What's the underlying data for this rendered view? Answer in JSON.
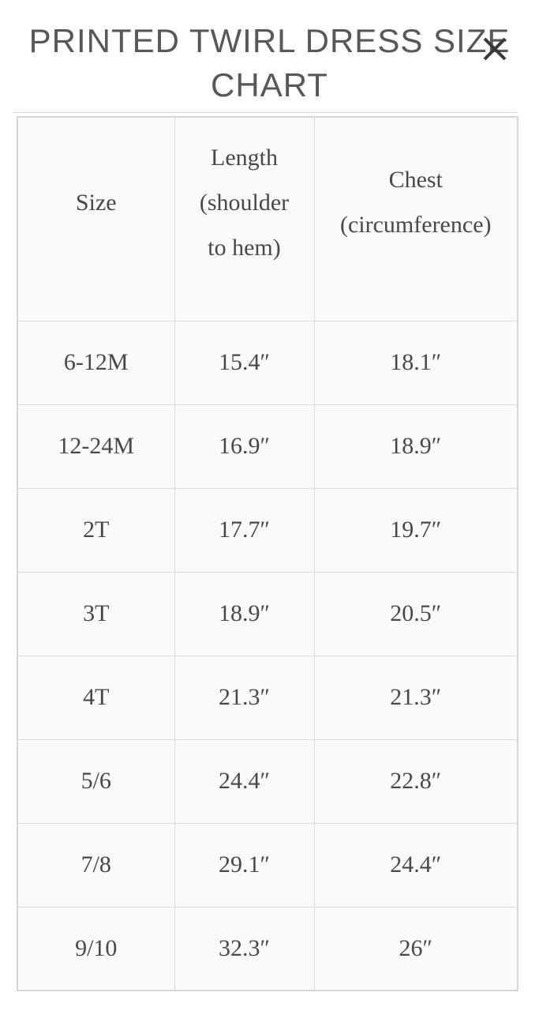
{
  "modal": {
    "title_line1": "PRINTED TWIRL DRESS SIZE",
    "title_line2": "CHART"
  },
  "icons": {
    "close_icon": "✕"
  },
  "table": {
    "columns": [
      "Size",
      "Length (shoulder to hem)",
      "Chest (circumference)"
    ],
    "rows": [
      [
        "6-12M",
        "15.4″",
        "18.1″"
      ],
      [
        "12-24M",
        "16.9″",
        "18.9″"
      ],
      [
        "2T",
        "17.7″",
        "19.7″"
      ],
      [
        "3T",
        "18.9″",
        "20.5″"
      ],
      [
        "4T",
        "21.3″",
        "21.3″"
      ],
      [
        "5/6",
        "24.4″",
        "22.8″"
      ],
      [
        "7/8",
        "29.1″",
        "24.4″"
      ],
      [
        "9/10",
        "32.3″",
        "26″"
      ]
    ]
  },
  "colors": {
    "page_background": "#ffffff",
    "cell_background": "#fafafa",
    "border": "#d9d9d9",
    "title_text": "#55585c",
    "table_text": "#45484c",
    "close_icon": "#3a3a3a"
  }
}
